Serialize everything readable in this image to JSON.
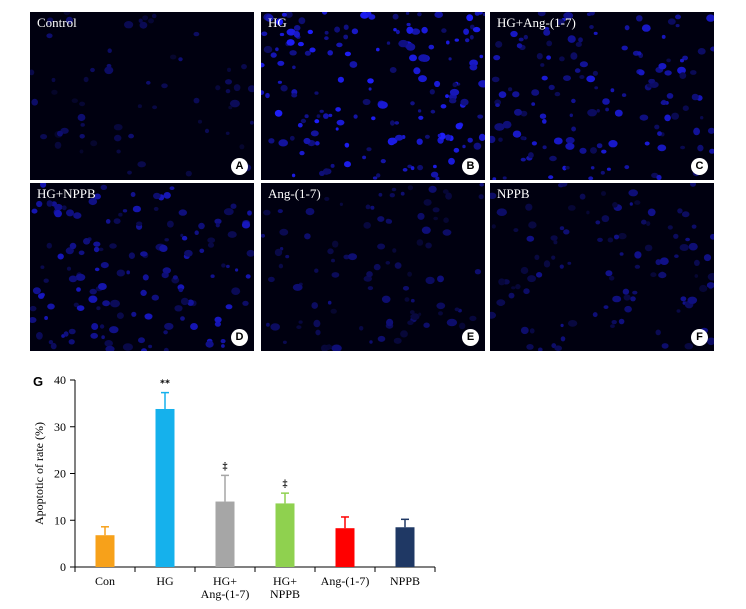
{
  "panels": [
    {
      "label": "Control",
      "letter": "A",
      "density": 0.35,
      "bright": 0.45
    },
    {
      "label": "HG",
      "letter": "B",
      "density": 0.95,
      "bright": 1.0
    },
    {
      "label": "HG+Ang-(1-7)",
      "letter": "C",
      "density": 0.8,
      "bright": 0.85
    },
    {
      "label": "HG+NPPB",
      "letter": "D",
      "density": 0.8,
      "bright": 0.75
    },
    {
      "label": "Ang-(1-7)",
      "letter": "E",
      "density": 0.55,
      "bright": 0.5
    },
    {
      "label": "NPPB",
      "letter": "F",
      "density": 0.6,
      "bright": 0.55
    }
  ],
  "chart_panel_letter": "G",
  "chart_data": {
    "type": "bar",
    "categories": [
      "Con",
      "HG",
      "HG+\nAng-(1-7)",
      "HG+\nNPPB",
      "Ang-(1-7)",
      "NPPB"
    ],
    "values": [
      6.8,
      33.8,
      14.0,
      13.6,
      8.3,
      8.5
    ],
    "errors": [
      1.8,
      3.5,
      5.6,
      2.2,
      2.4,
      1.7
    ],
    "colors": [
      "#f7a11a",
      "#15b1ec",
      "#a6a6a6",
      "#8fd14f",
      "#ff0000",
      "#1f3864"
    ],
    "annotations": [
      "",
      "**",
      "‡",
      "‡",
      "",
      ""
    ],
    "ylabel": "Apoptotic of rate (%)",
    "ylim": [
      0,
      40
    ],
    "yticks": [
      0,
      10,
      20,
      30,
      40
    ]
  }
}
